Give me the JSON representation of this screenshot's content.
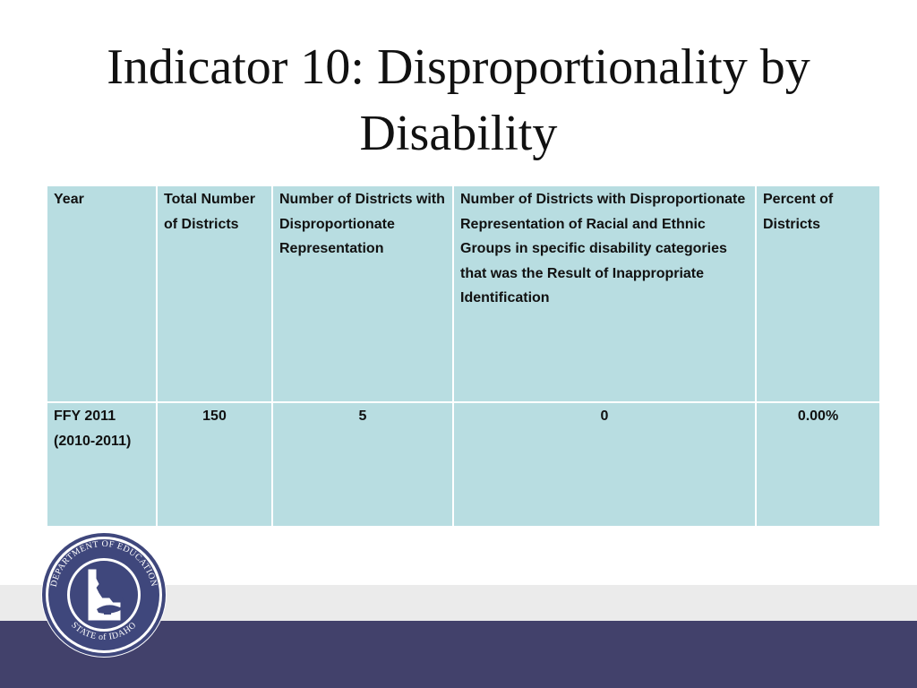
{
  "title": {
    "line1": "Indicator 10: Disproportionality by",
    "line2": "Disability"
  },
  "table": {
    "headers": [
      "Year",
      "Total Number of Districts",
      "Number of Districts with Disproportionate Representation",
      "Number of Districts with Disproportionate Representation of Racial and Ethnic Groups in specific disability categories that was the Result of Inappropriate Identification",
      "Percent of Districts"
    ],
    "rows": [
      {
        "year_line1": "FFY 2011",
        "year_line2": "(2010-2011)",
        "total": "150",
        "disproportionate": "5",
        "inappropriate": "0",
        "percent": "0.00%"
      }
    ]
  },
  "seal": {
    "top_text": "DEPARTMENT OF EDUCATION",
    "bottom_text": "STATE of IDAHO",
    "icon": "idaho-lamp-seal-icon"
  },
  "colors": {
    "table_fill": "#b8dde1",
    "footer_dark": "#42416b",
    "footer_light": "#ebebeb",
    "seal_blue": "#3f477c"
  }
}
